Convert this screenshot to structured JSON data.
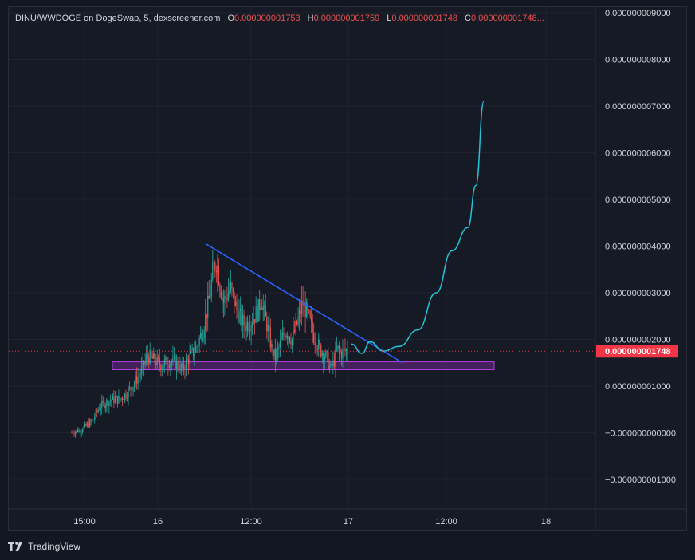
{
  "legend": {
    "symbol": "DINU/WWDOGE on DogeSwap, 5, dexscreener.com",
    "o_key": "O",
    "o_val": "0.000000001753",
    "h_key": "H",
    "h_val": "0.000000001759",
    "l_key": "L",
    "l_val": "0.000000001748",
    "c_key": "C",
    "c_val": "0.000000001748..."
  },
  "footer": {
    "brand": "TradingView",
    "logo_icon": "tradingview-logo-icon"
  },
  "colors": {
    "background": "#131722",
    "pane": "#161a25",
    "grid": "#1f2330",
    "up": "#26a69a",
    "down": "#ef5350",
    "trendline": "#2962ff",
    "projection": "#22c3d6",
    "zone_fill": "#6a2a8a",
    "zone_border": "#b040e0",
    "price_tag": "#f23645"
  },
  "chart_data": {
    "type": "candlestick",
    "x_tick_labels": [
      "15:00",
      "16",
      "12:00",
      "17",
      "12:00",
      "18"
    ],
    "y_tick_labels": [
      "0.000000009000",
      "0.000000008000",
      "0.000000007000",
      "0.000000006000",
      "0.000000005000",
      "0.000000004000",
      "0.000000003000",
      "0.000000002000",
      "0.000000001000",
      "−0.000000000000",
      "−0.000000001000"
    ],
    "y_ticks": [
      9.0,
      8.0,
      7.0,
      6.0,
      5.0,
      4.0,
      3.0,
      2.0,
      1.0,
      0.0,
      -1.0
    ],
    "y_unit_note": "",
    "ylim": [
      -1.5,
      9.3
    ],
    "last_price_label": "0.000000001748",
    "last_price": 1.748,
    "price_path": [
      [
        0.0,
        0.0
      ],
      [
        0.03,
        0.08
      ],
      [
        0.06,
        0.25
      ],
      [
        0.08,
        0.55
      ],
      [
        0.1,
        0.65
      ],
      [
        0.12,
        0.72
      ],
      [
        0.14,
        0.72
      ],
      [
        0.16,
        0.85
      ],
      [
        0.18,
        1.05
      ],
      [
        0.2,
        1.3
      ],
      [
        0.22,
        1.65
      ],
      [
        0.24,
        1.55
      ],
      [
        0.26,
        1.45
      ],
      [
        0.28,
        1.55
      ],
      [
        0.3,
        1.5
      ],
      [
        0.32,
        1.35
      ],
      [
        0.34,
        1.6
      ],
      [
        0.36,
        1.8
      ],
      [
        0.38,
        2.2
      ],
      [
        0.4,
        2.9
      ],
      [
        0.41,
        3.5
      ],
      [
        0.42,
        3.7
      ],
      [
        0.43,
        3.2
      ],
      [
        0.44,
        2.8
      ],
      [
        0.46,
        3.1
      ],
      [
        0.48,
        2.6
      ],
      [
        0.5,
        2.3
      ],
      [
        0.52,
        2.4
      ],
      [
        0.54,
        2.6
      ],
      [
        0.55,
        2.9
      ],
      [
        0.56,
        2.5
      ],
      [
        0.57,
        2.2
      ],
      [
        0.58,
        1.8
      ],
      [
        0.59,
        1.6
      ],
      [
        0.6,
        1.8
      ],
      [
        0.62,
        2.2
      ],
      [
        0.64,
        2.0
      ],
      [
        0.66,
        2.5
      ],
      [
        0.67,
        2.8
      ],
      [
        0.68,
        2.6
      ],
      [
        0.69,
        2.4
      ],
      [
        0.7,
        2.1
      ],
      [
        0.72,
        1.8
      ],
      [
        0.74,
        1.6
      ],
      [
        0.75,
        1.35
      ],
      [
        0.76,
        1.5
      ],
      [
        0.77,
        1.8
      ],
      [
        0.78,
        1.7
      ],
      [
        0.79,
        1.75
      ],
      [
        0.8,
        1.75
      ]
    ],
    "x_start_time_frac": 0.0,
    "x_end_time_frac": 0.8,
    "trendline": [
      [
        0.42,
        4.05
      ],
      [
        1.0,
        1.5
      ]
    ],
    "support_zone": {
      "y_low": 1.35,
      "y_high": 1.52
    },
    "projection": [
      [
        0.0,
        1.9
      ],
      [
        0.04,
        1.7
      ],
      [
        0.07,
        1.95
      ],
      [
        0.12,
        1.75
      ],
      [
        0.18,
        1.85
      ],
      [
        0.25,
        2.2
      ],
      [
        0.32,
        3.0
      ],
      [
        0.38,
        3.9
      ],
      [
        0.44,
        4.4
      ],
      [
        0.47,
        5.3
      ],
      [
        0.5,
        7.1
      ]
    ],
    "grid": true,
    "legend_position": "top-left"
  }
}
